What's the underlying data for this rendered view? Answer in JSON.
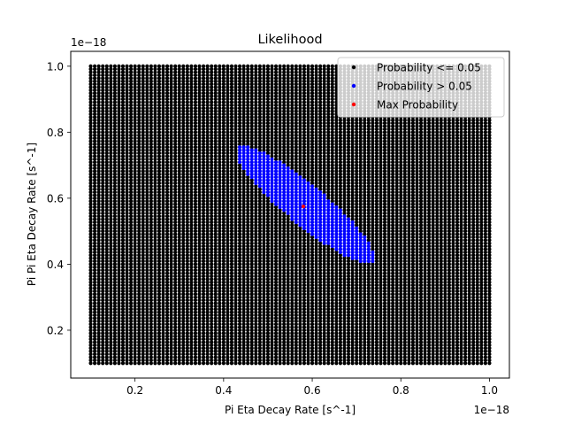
{
  "chart_data": {
    "type": "scatter",
    "title": "Likelihood",
    "xlabel": "Pi Eta Decay Rate [s^-1]",
    "ylabel": "Pi Pi Eta Decay Rate [s^-1]",
    "x_offset_text": "1e−18",
    "y_offset_text": "1e−18",
    "xlim": [
      0.055,
      1.045
    ],
    "ylim": [
      0.055,
      1.045
    ],
    "xticks": [
      0.2,
      0.4,
      0.6,
      0.8,
      1.0
    ],
    "yticks": [
      0.2,
      0.4,
      0.6,
      0.8,
      1.0
    ],
    "xtick_labels": [
      "0.2",
      "0.4",
      "0.6",
      "0.8",
      "1.0"
    ],
    "ytick_labels": [
      "0.2",
      "0.4",
      "0.6",
      "0.8",
      "1.0"
    ],
    "grid": false,
    "legend_position": "top-right",
    "grid_points": {
      "x_min": 0.1,
      "x_max": 1.0,
      "y_min": 0.1,
      "y_max": 1.0,
      "count_per_axis": 100
    },
    "series": [
      {
        "name": "Probability <= 0.05",
        "color": "#000000",
        "region": "all grid points outside the high-probability region"
      },
      {
        "name": "Probability > 0.05",
        "color": "#0000ff",
        "region_ellipse": {
          "center": [
            0.585,
            0.58
          ],
          "semi_major": 0.23,
          "semi_minor": 0.052,
          "major_axis_slope": -1.15
        },
        "x_range": [
          0.44,
          0.73
        ],
        "y_range": [
          0.41,
          0.75
        ]
      },
      {
        "name": "Max Probability",
        "color": "#ff0000",
        "points": [
          {
            "x": 0.58,
            "y": 0.575
          }
        ]
      }
    ]
  }
}
